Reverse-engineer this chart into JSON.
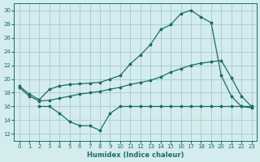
{
  "xlabel": "Humidex (Indice chaleur)",
  "xlim": [
    -0.5,
    23.5
  ],
  "ylim": [
    11,
    31
  ],
  "yticks": [
    12,
    14,
    16,
    18,
    20,
    22,
    24,
    26,
    28,
    30
  ],
  "xticks": [
    0,
    1,
    2,
    3,
    4,
    5,
    6,
    7,
    8,
    9,
    10,
    11,
    12,
    13,
    14,
    15,
    16,
    17,
    18,
    19,
    20,
    21,
    22,
    23
  ],
  "bg_color": "#d4ecee",
  "grid_color": "#aacfd4",
  "line_color": "#1d6b6b",
  "line1_x": [
    0,
    1,
    2,
    3,
    4,
    5,
    6,
    7,
    8,
    9,
    10,
    11,
    12,
    13,
    14,
    15,
    16,
    17,
    18,
    19,
    20,
    21,
    22,
    23
  ],
  "line1_y": [
    19.0,
    17.8,
    17.0,
    18.5,
    19.0,
    19.2,
    19.3,
    19.4,
    19.5,
    20.0,
    20.5,
    22.2,
    23.5,
    25.0,
    27.2,
    27.9,
    29.5,
    30.0,
    29.0,
    28.2,
    20.5,
    17.5,
    16.0,
    15.8
  ],
  "line2_x": [
    0,
    1,
    2,
    3,
    4,
    5,
    6,
    7,
    8,
    9,
    10,
    11,
    12,
    13,
    14,
    15,
    16,
    17,
    18,
    19,
    20,
    21,
    22,
    23
  ],
  "line2_y": [
    18.8,
    17.5,
    16.8,
    16.9,
    17.2,
    17.5,
    17.8,
    18.0,
    18.2,
    18.5,
    18.8,
    19.2,
    19.5,
    19.8,
    20.3,
    21.0,
    21.5,
    22.0,
    22.3,
    22.5,
    22.7,
    20.2,
    17.5,
    16.0
  ],
  "line3_x": [
    2,
    3,
    4,
    5,
    6,
    7,
    8,
    9,
    10,
    11,
    12,
    13,
    14,
    15,
    16,
    17,
    18,
    19,
    20,
    21,
    22,
    23
  ],
  "line3_y": [
    16.0,
    16.0,
    15.0,
    13.8,
    13.2,
    13.2,
    12.5,
    15.0,
    16.0,
    16.0,
    16.0,
    16.0,
    16.0,
    16.0,
    16.0,
    16.0,
    16.0,
    16.0,
    16.0,
    16.0,
    16.0,
    16.0
  ]
}
